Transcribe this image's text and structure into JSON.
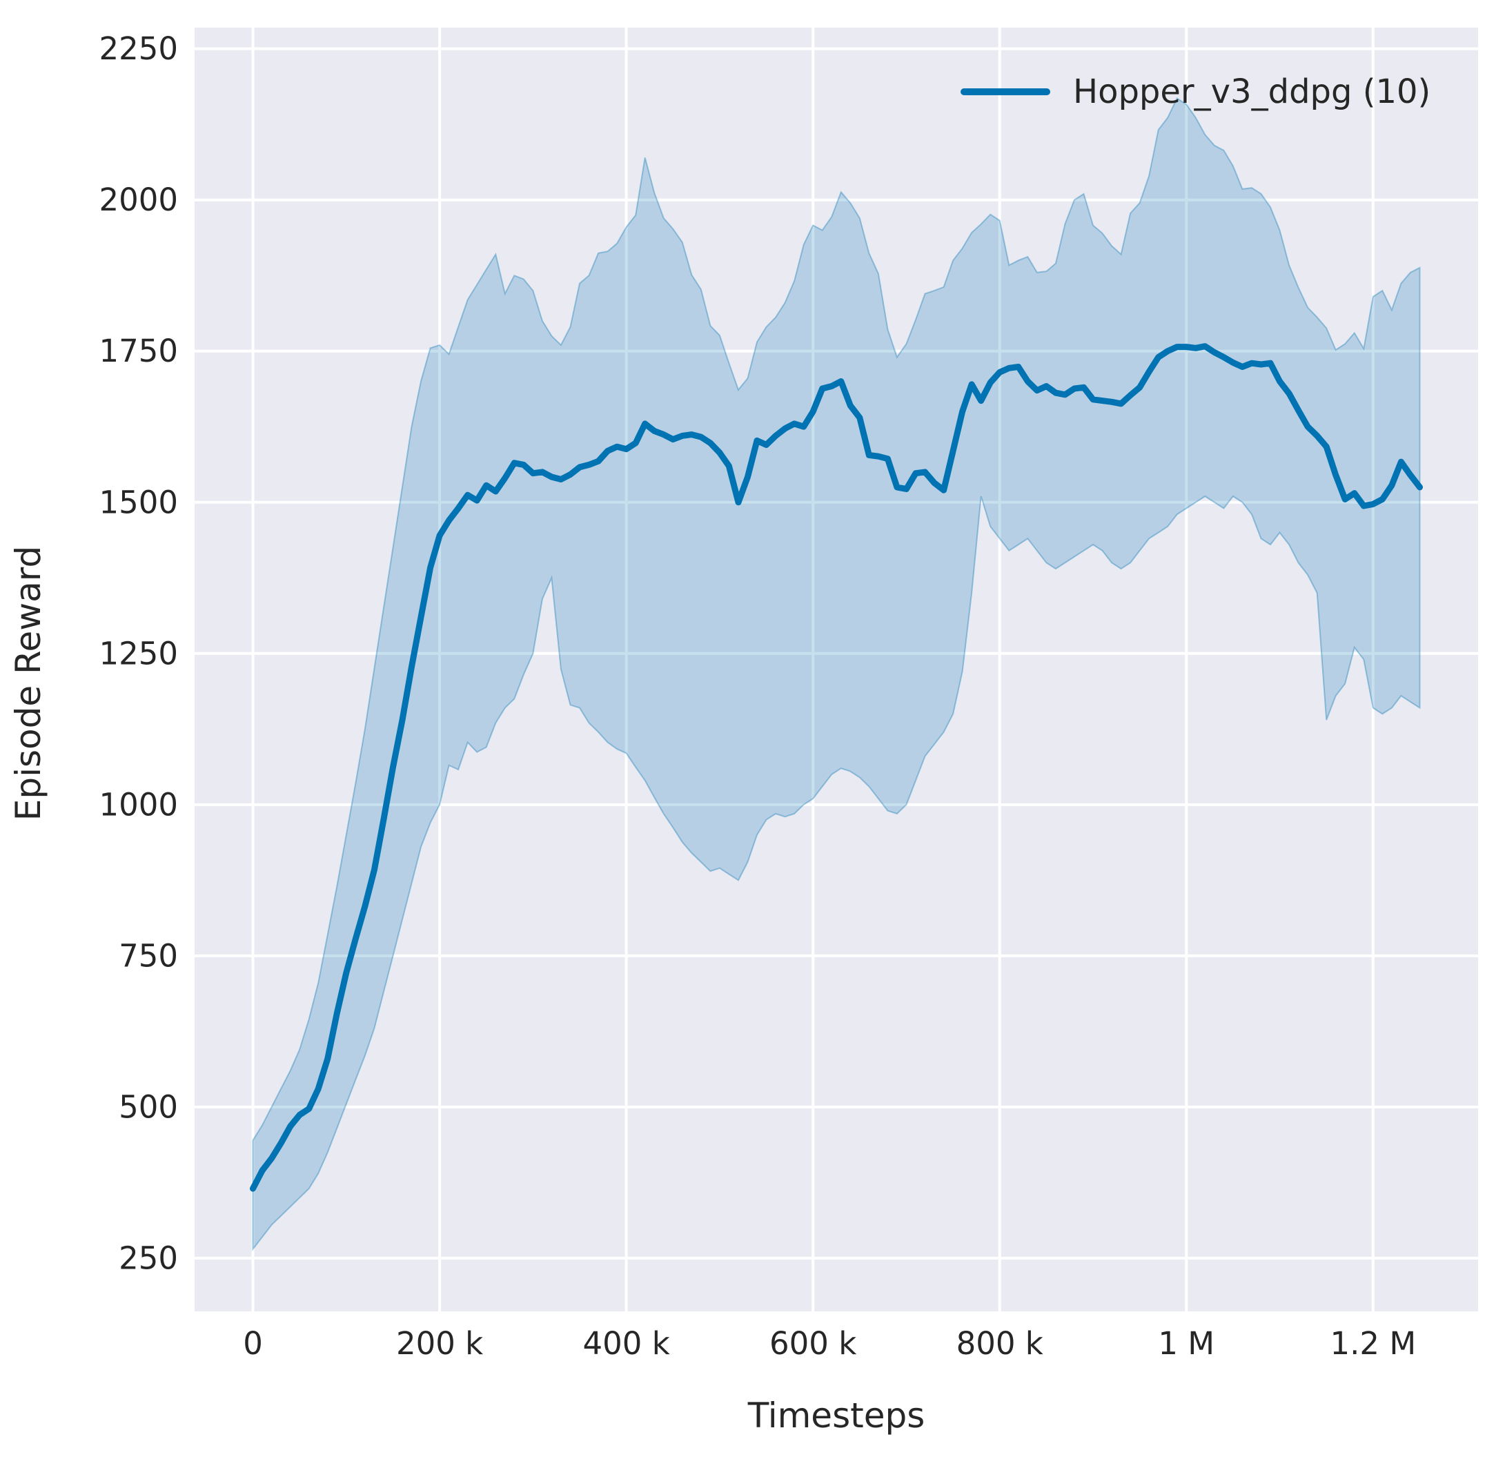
{
  "chart_data": {
    "type": "line",
    "title": "",
    "xlabel": "Timesteps",
    "ylabel": "Episode Reward",
    "grid": true,
    "legend": {
      "position": "upper right",
      "entries": [
        "Hopper_v3_ddpg (10)"
      ]
    },
    "x_tick_labels": [
      "0",
      "200 k",
      "400 k",
      "600 k",
      "800 k",
      "1 M",
      "1.2 M"
    ],
    "x_tick_values": [
      0,
      200000,
      400000,
      600000,
      800000,
      1000000,
      1200000
    ],
    "y_tick_labels": [
      "250",
      "500",
      "750",
      "1000",
      "1250",
      "1500",
      "1750",
      "2000",
      "2250"
    ],
    "y_tick_values": [
      250,
      500,
      750,
      1000,
      1250,
      1500,
      1750,
      2000,
      2250
    ],
    "xlim": [
      -62500,
      1312500
    ],
    "ylim": [
      162,
      2285
    ],
    "colors": {
      "line": "#0173b2",
      "band_fill": "rgba(1,115,178,0.22)",
      "band_edge": "rgba(1,115,178,0.35)",
      "plot_bg": "#eaeaf2",
      "grid": "#ffffff",
      "text": "#262626"
    },
    "series": [
      {
        "name": "Hopper_v3_ddpg (10)",
        "x_unit": "timesteps (thousands)",
        "x_k": [
          0,
          10,
          20,
          30,
          40,
          50,
          60,
          70,
          80,
          90,
          100,
          110,
          120,
          130,
          140,
          150,
          160,
          170,
          180,
          190,
          200,
          210,
          220,
          230,
          240,
          250,
          260,
          270,
          280,
          290,
          300,
          310,
          320,
          330,
          340,
          350,
          360,
          370,
          380,
          390,
          400,
          410,
          420,
          430,
          440,
          450,
          460,
          470,
          480,
          490,
          500,
          510,
          520,
          530,
          540,
          550,
          560,
          570,
          580,
          590,
          600,
          610,
          620,
          630,
          640,
          650,
          660,
          670,
          680,
          690,
          700,
          710,
          720,
          730,
          740,
          750,
          760,
          770,
          780,
          790,
          800,
          810,
          820,
          830,
          840,
          850,
          860,
          870,
          880,
          890,
          900,
          910,
          920,
          930,
          940,
          950,
          960,
          970,
          980,
          990,
          1000,
          1010,
          1020,
          1030,
          1040,
          1050,
          1060,
          1070,
          1080,
          1090,
          1100,
          1110,
          1120,
          1130,
          1140,
          1150,
          1160,
          1170,
          1180,
          1190,
          1200,
          1210,
          1220,
          1230,
          1240,
          1250
        ],
        "mean": [
          365,
          395,
          415,
          440,
          468,
          487,
          497,
          530,
          580,
          655,
          722,
          778,
          832,
          892,
          975,
          1062,
          1140,
          1228,
          1310,
          1392,
          1445,
          1470,
          1490,
          1512,
          1503,
          1528,
          1518,
          1540,
          1565,
          1562,
          1548,
          1550,
          1542,
          1538,
          1546,
          1558,
          1562,
          1568,
          1585,
          1592,
          1588,
          1598,
          1630,
          1618,
          1612,
          1604,
          1610,
          1612,
          1608,
          1598,
          1582,
          1560,
          1500,
          1542,
          1602,
          1595,
          1610,
          1622,
          1630,
          1625,
          1650,
          1688,
          1692,
          1700,
          1660,
          1640,
          1578,
          1576,
          1572,
          1525,
          1522,
          1548,
          1550,
          1532,
          1520,
          1585,
          1650,
          1695,
          1668,
          1698,
          1715,
          1722,
          1724,
          1700,
          1685,
          1692,
          1681,
          1678,
          1688,
          1690,
          1670,
          1668,
          1666,
          1663,
          1677,
          1690,
          1716,
          1740,
          1750,
          1757,
          1757,
          1755,
          1758,
          1748,
          1740,
          1731,
          1724,
          1730,
          1728,
          1730,
          1700,
          1680,
          1652,
          1625,
          1610,
          1592,
          1545,
          1505,
          1515,
          1494,
          1497,
          1505,
          1528,
          1567,
          1545,
          1525
        ],
        "band_upper": [
          445,
          470,
          500,
          530,
          560,
          595,
          645,
          705,
          785,
          865,
          950,
          1035,
          1125,
          1225,
          1325,
          1425,
          1525,
          1625,
          1700,
          1755,
          1760,
          1745,
          1790,
          1835,
          1860,
          1885,
          1910,
          1845,
          1875,
          1869,
          1850,
          1800,
          1775,
          1760,
          1790,
          1862,
          1875,
          1912,
          1915,
          1928,
          1955,
          1975,
          2070,
          2012,
          1970,
          1952,
          1930,
          1876,
          1852,
          1792,
          1776,
          1730,
          1686,
          1705,
          1765,
          1790,
          1806,
          1830,
          1866,
          1926,
          1958,
          1950,
          1972,
          2013,
          1995,
          1970,
          1912,
          1878,
          1786,
          1740,
          1762,
          1802,
          1845,
          1850,
          1856,
          1900,
          1920,
          1946,
          1960,
          1976,
          1966,
          1892,
          1900,
          1906,
          1880,
          1882,
          1895,
          1960,
          2000,
          2010,
          1958,
          1945,
          1924,
          1910,
          1978,
          1995,
          2040,
          2116,
          2136,
          2168,
          2158,
          2136,
          2108,
          2090,
          2082,
          2056,
          2018,
          2020,
          2010,
          1988,
          1950,
          1892,
          1855,
          1822,
          1806,
          1788,
          1752,
          1762,
          1780,
          1754,
          1840,
          1850,
          1818,
          1862,
          1880,
          1888
        ],
        "band_lower": [
          265,
          285,
          305,
          320,
          335,
          350,
          365,
          390,
          425,
          465,
          505,
          545,
          585,
          630,
          690,
          750,
          810,
          870,
          930,
          970,
          1000,
          1065,
          1058,
          1103,
          1087,
          1095,
          1135,
          1160,
          1175,
          1215,
          1250,
          1340,
          1375,
          1224,
          1165,
          1160,
          1135,
          1120,
          1103,
          1092,
          1085,
          1062,
          1040,
          1012,
          985,
          962,
          938,
          920,
          905,
          890,
          895,
          885,
          875,
          905,
          950,
          975,
          985,
          980,
          985,
          1000,
          1010,
          1030,
          1050,
          1060,
          1055,
          1045,
          1030,
          1010,
          990,
          985,
          1000,
          1040,
          1080,
          1100,
          1120,
          1150,
          1220,
          1350,
          1510,
          1460,
          1440,
          1420,
          1430,
          1440,
          1420,
          1400,
          1390,
          1400,
          1410,
          1420,
          1430,
          1420,
          1400,
          1390,
          1400,
          1420,
          1440,
          1450,
          1460,
          1480,
          1490,
          1500,
          1510,
          1500,
          1490,
          1510,
          1500,
          1480,
          1440,
          1430,
          1450,
          1430,
          1400,
          1380,
          1350,
          1140,
          1180,
          1200,
          1260,
          1240,
          1160,
          1150,
          1160,
          1180,
          1170,
          1160
        ]
      }
    ]
  }
}
